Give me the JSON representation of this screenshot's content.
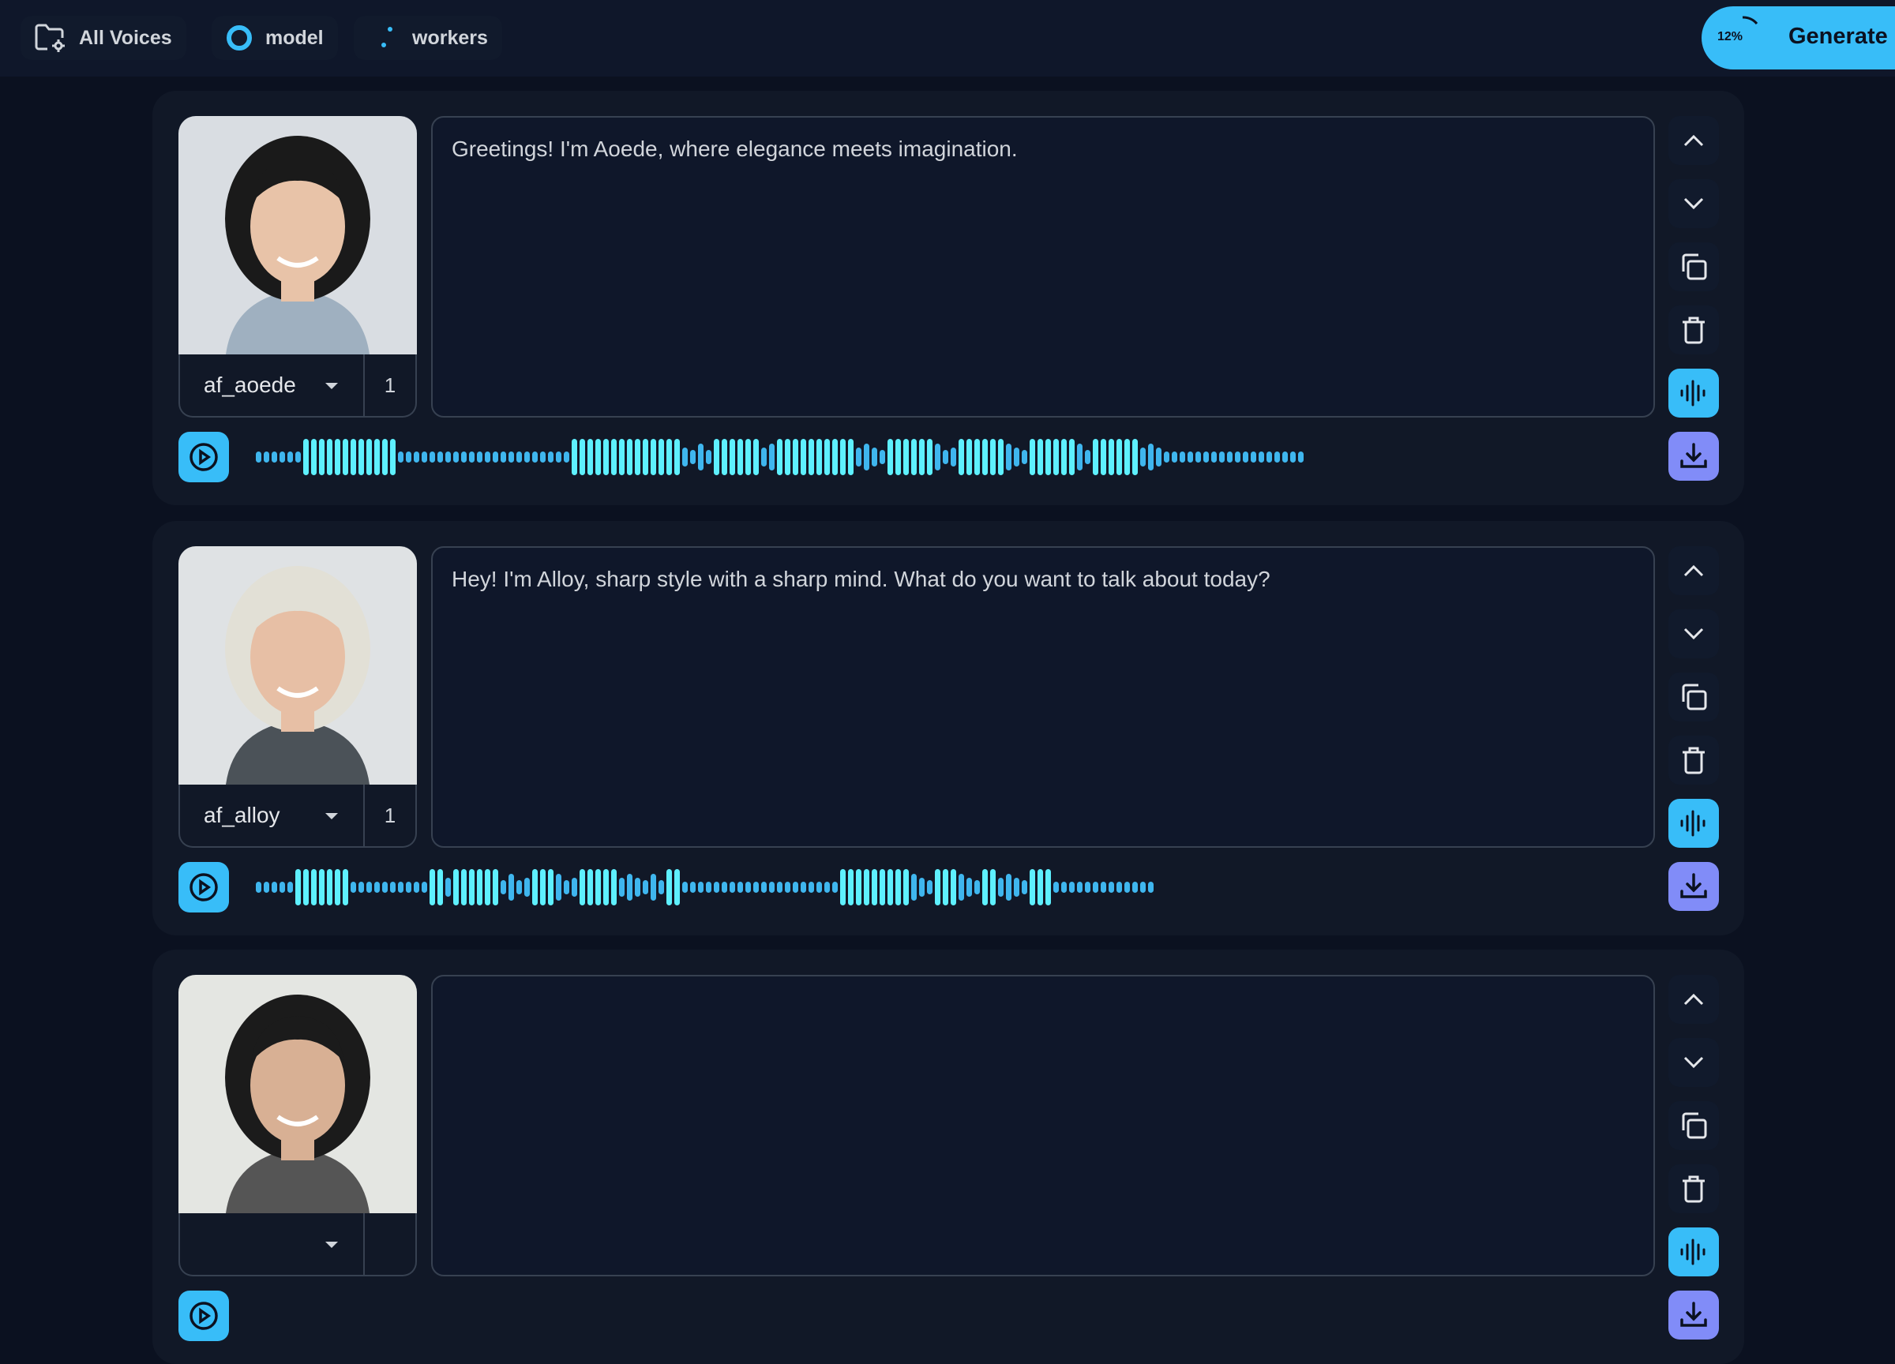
{
  "topbar": {
    "all_voices": {
      "label": "All Voices",
      "icon": "folder-gear-icon"
    },
    "model": {
      "label": "model",
      "icon": "ring-icon"
    },
    "workers": {
      "label": "workers",
      "icon": "dots-icon"
    },
    "generate": {
      "label": "Generate",
      "progress": "12%"
    }
  },
  "colors": {
    "accent": "#38bdf8",
    "download": "#818cf8",
    "wave_bright": "#5ef0ff",
    "wave_dim": "#3fb6ee"
  },
  "entries": [
    {
      "voice": "af_aoede",
      "count": "1",
      "text": "Greetings! I'm Aoede, where elegance meets imagination."
    },
    {
      "voice": "af_alloy",
      "count": "1",
      "text": "Hey! I'm Alloy, sharp style with a sharp mind. What do you want to talk about today?"
    },
    {
      "voice": "",
      "count": "",
      "text": ""
    }
  ]
}
